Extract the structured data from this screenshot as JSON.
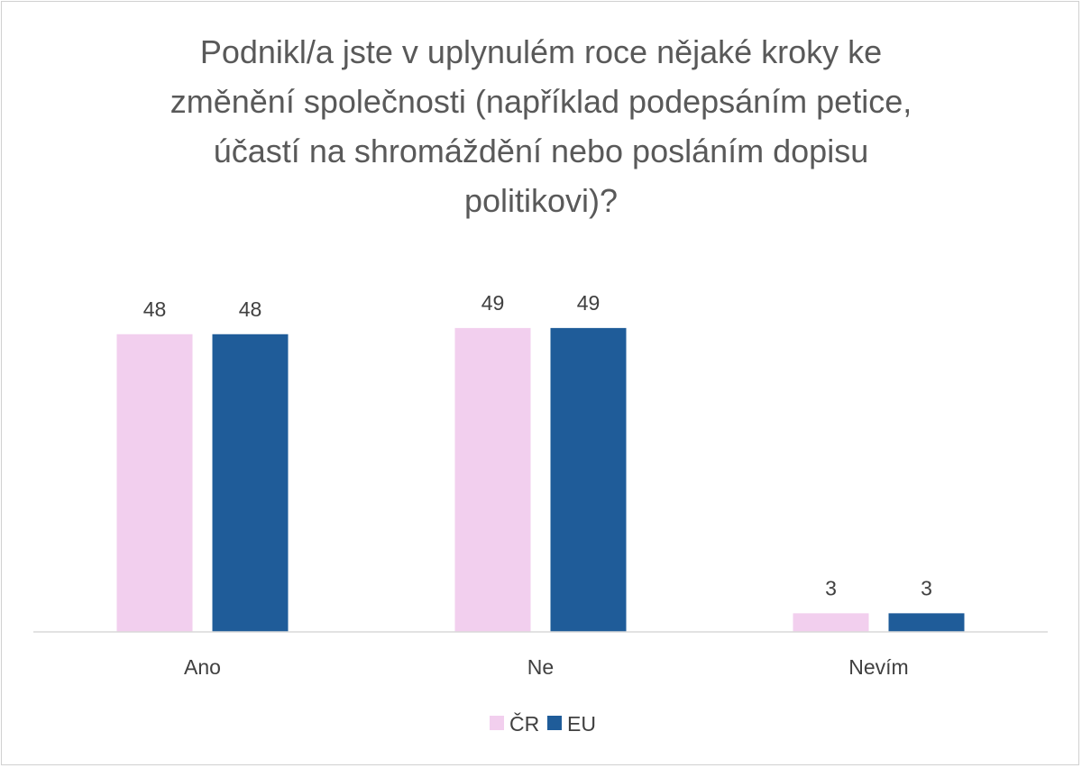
{
  "chart_data": {
    "type": "bar",
    "title": "Podnikl/a jste v uplynulém roce nějaké kroky ke\nzměnění společnosti (například podepsáním petice,\núčastí na shromáždění nebo posláním dopisu\npolitikovi)?",
    "categories": [
      "Ano",
      "Ne",
      "Nevím"
    ],
    "series": [
      {
        "name": "ČR",
        "values": [
          48,
          49,
          3
        ],
        "color": "#F2CFEE"
      },
      {
        "name": "EU",
        "values": [
          48,
          49,
          3
        ],
        "color": "#1F5C99"
      }
    ],
    "xlabel": "",
    "ylabel": "",
    "ylim": [
      0,
      50
    ],
    "grid": false,
    "data_labels": true,
    "legend": "bottom-center"
  }
}
